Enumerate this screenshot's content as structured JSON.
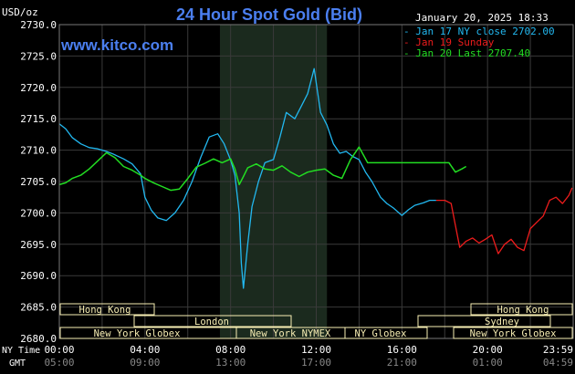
{
  "header": {
    "title": "24 Hour Spot Gold (Bid)",
    "unit_label": "USD/oz",
    "timestamp": "January 20, 2025 18:33",
    "site": "www.kitco.com"
  },
  "legend": [
    {
      "label": "Jan 17 NY close 2702.00",
      "color": "#22b8f0"
    },
    {
      "label": "Jan 19 Sunday",
      "color": "#ee1c1c"
    },
    {
      "label": "Jan 20 Last 2707.40",
      "color": "#22dd22"
    }
  ],
  "axis_rows": {
    "ny_time_label": "NY Time",
    "gmt_label": "GMT"
  },
  "sessions": {
    "hong_kong_1": "Hong Kong",
    "london": "London",
    "new_york_globex_1": "New York Globex",
    "new_york_nymex": "New York NYMEX",
    "ny_globex": "NY Globex",
    "hong_kong_2": "Hong Kong",
    "sydney": "Sydney",
    "new_york_globex_2": "New York Globex"
  },
  "colors": {
    "background": "#000000",
    "grid": "#3a3a3a",
    "highlight": "#1b2a1e",
    "title": "#4b7ff0",
    "text": "#ffffff",
    "session_box": "#f8efb4"
  },
  "chart_data": {
    "type": "line",
    "title": "24 Hour Spot Gold (Bid)",
    "ylabel": "USD/oz",
    "ylim": [
      2680,
      2730
    ],
    "y_ticks": [
      "2730.0",
      "2725.0",
      "2720.0",
      "2715.0",
      "2710.0",
      "2705.0",
      "2700.0",
      "2695.0",
      "2690.0",
      "2685.0",
      "2680.0"
    ],
    "x_ticks_ny": [
      "00:00",
      "04:00",
      "08:00",
      "12:00",
      "16:00",
      "20:00",
      "23:59"
    ],
    "x_ticks_gmt": [
      "05:00",
      "09:00",
      "13:00",
      "17:00",
      "21:00",
      "01:00",
      "04:59"
    ],
    "x_unit": "hours (NY time)",
    "highlight_range": [
      7.5,
      12.5
    ],
    "series": [
      {
        "name": "Jan 17 NY close 2702.00",
        "color": "#22b8f0",
        "x": [
          0.0,
          0.3,
          0.6,
          1.0,
          1.4,
          1.8,
          2.2,
          2.5,
          3.0,
          3.4,
          3.8,
          4.0,
          4.3,
          4.6,
          5.0,
          5.4,
          5.8,
          6.2,
          6.6,
          7.0,
          7.4,
          7.7,
          8.0,
          8.2,
          8.4,
          8.5,
          8.6,
          8.8,
          9.0,
          9.3,
          9.6,
          10.0,
          10.3,
          10.6,
          11.0,
          11.3,
          11.6,
          11.9,
          12.2,
          12.5,
          12.8,
          13.1,
          13.4,
          13.7,
          14.0,
          14.3,
          14.6,
          15.0,
          15.3,
          15.6,
          16.0,
          16.3,
          16.6,
          17.0,
          17.3,
          17.6
        ],
        "y": [
          2714.2,
          2713.4,
          2712.0,
          2711.0,
          2710.4,
          2710.2,
          2709.8,
          2709.4,
          2708.6,
          2707.8,
          2706.2,
          2702.5,
          2700.4,
          2699.2,
          2698.8,
          2700.0,
          2702.0,
          2705.0,
          2708.8,
          2712.1,
          2712.6,
          2711.0,
          2708.4,
          2706.0,
          2700.0,
          2692.0,
          2688.0,
          2695.0,
          2701.0,
          2705.0,
          2708.0,
          2708.5,
          2712.0,
          2716.0,
          2715.0,
          2717.0,
          2719.0,
          2723.0,
          2716.0,
          2714.0,
          2711.0,
          2709.5,
          2709.8,
          2709.0,
          2708.5,
          2706.5,
          2705.0,
          2702.5,
          2701.5,
          2700.8,
          2699.6,
          2700.5,
          2701.2,
          2701.6,
          2702.0,
          2702.0
        ]
      },
      {
        "name": "Jan 19 Sunday",
        "color": "#ee1c1c",
        "x": [
          17.6,
          18.0,
          18.3,
          18.5,
          18.7,
          19.0,
          19.3,
          19.6,
          19.9,
          20.2,
          20.5,
          20.8,
          21.1,
          21.4,
          21.7,
          22.0,
          22.3,
          22.6,
          22.9,
          23.2,
          23.5,
          23.8,
          23.95
        ],
        "y": [
          2702.0,
          2702.0,
          2701.5,
          2698.0,
          2694.5,
          2695.5,
          2696.0,
          2695.2,
          2695.8,
          2696.5,
          2693.5,
          2695.0,
          2695.8,
          2694.5,
          2694.0,
          2697.5,
          2698.5,
          2699.5,
          2702.0,
          2702.5,
          2701.5,
          2702.8,
          2704.0
        ]
      },
      {
        "name": "Jan 20 Last 2707.40",
        "color": "#22dd22",
        "x": [
          0.0,
          0.3,
          0.6,
          1.0,
          1.4,
          1.8,
          2.2,
          2.6,
          3.0,
          3.4,
          3.8,
          4.0,
          4.4,
          4.8,
          5.2,
          5.6,
          6.0,
          6.4,
          6.8,
          7.2,
          7.6,
          8.0,
          8.2,
          8.4,
          8.6,
          8.8,
          9.2,
          9.6,
          10.0,
          10.4,
          10.8,
          11.2,
          11.6,
          12.0,
          12.4,
          12.8,
          13.2,
          13.6,
          14.0,
          14.4,
          14.6,
          15.0,
          15.4,
          16.0,
          16.6,
          17.0,
          17.6,
          18.2,
          18.5,
          18.8,
          19.0
        ],
        "y": [
          2704.5,
          2704.8,
          2705.5,
          2706.0,
          2707.0,
          2708.3,
          2709.6,
          2708.8,
          2707.4,
          2706.8,
          2706.0,
          2705.5,
          2704.8,
          2704.2,
          2703.6,
          2703.8,
          2705.5,
          2707.3,
          2707.9,
          2708.6,
          2708.0,
          2708.6,
          2707.0,
          2704.5,
          2705.8,
          2707.2,
          2707.8,
          2707.0,
          2706.8,
          2707.5,
          2706.5,
          2705.8,
          2706.5,
          2706.8,
          2707.0,
          2706.0,
          2705.5,
          2708.5,
          2710.5,
          2708.0,
          2708.0,
          2708.0,
          2708.0,
          2708.0,
          2708.0,
          2708.0,
          2708.0,
          2708.0,
          2706.5,
          2707.0,
          2707.4
        ]
      }
    ]
  }
}
